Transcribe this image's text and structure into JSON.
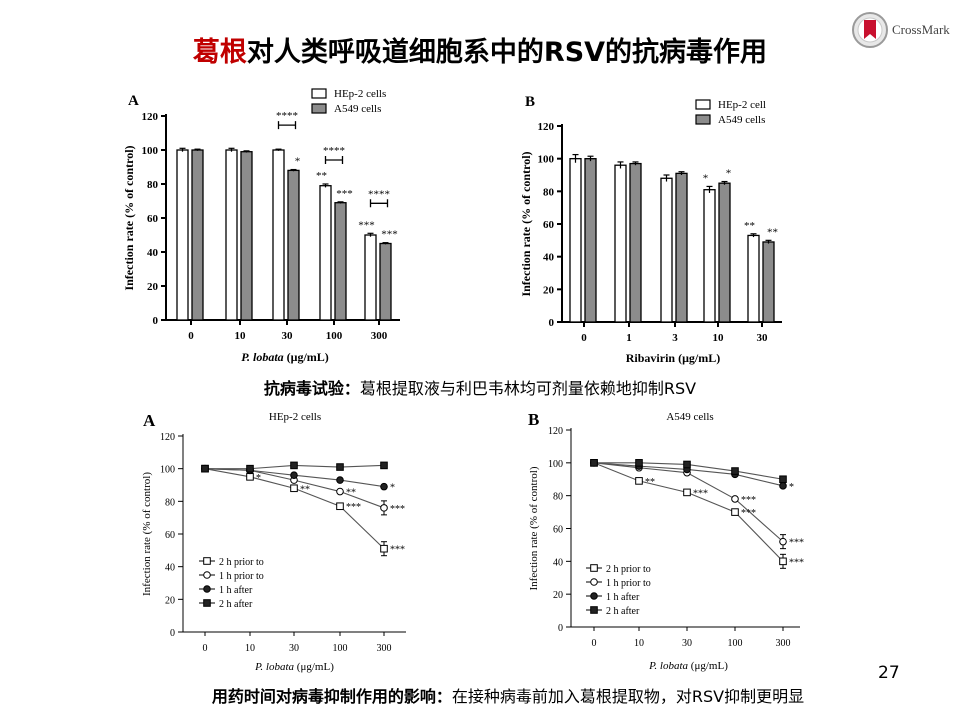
{
  "title": {
    "highlight": "葛根",
    "rest": "对人类呼吸道细胞系中的RSV的抗病毒作用"
  },
  "crossmark": {
    "label": "CrossMark"
  },
  "caption1": {
    "bold": "抗病毒试验：",
    "text": "葛根提取液与利巴韦林均可剂量依赖地抑制RSV"
  },
  "caption2": {
    "bold": "用药时间对病毒抑制作用的影响：",
    "text": "在接种病毒前加入葛根提取物，对RSV抑制更明显"
  },
  "page_number": "27",
  "chart_data": [
    {
      "panel": "A",
      "type": "bar",
      "categories": [
        "0",
        "10",
        "30",
        "100",
        "300"
      ],
      "series": [
        {
          "name": "HEp-2 cells",
          "values": [
            100,
            100,
            100,
            79,
            50
          ],
          "errors": [
            1,
            1,
            0.5,
            1,
            1
          ],
          "stars": [
            "",
            "",
            "",
            "**",
            "***"
          ],
          "color": "#ffffff"
        },
        {
          "name": "A549 cells",
          "values": [
            100,
            99,
            88,
            69,
            45
          ],
          "errors": [
            0.5,
            0.5,
            0.5,
            0.5,
            0.5
          ],
          "stars": [
            "",
            "",
            "*",
            "***",
            "***"
          ],
          "color": "#8c8c8c"
        }
      ],
      "brackets": [
        {
          "category": "30",
          "label": "****"
        },
        {
          "category": "100",
          "label": "****"
        },
        {
          "category": "300",
          "label": "****"
        }
      ],
      "xlabel": "P. lobata (μg/mL)",
      "ylabel": "Infection rate (% of control)",
      "ylim": [
        0,
        120
      ],
      "yticks": [
        0,
        20,
        40,
        60,
        80,
        100,
        120
      ],
      "legend": "top-center"
    },
    {
      "panel": "B",
      "type": "bar",
      "categories": [
        "0",
        "1",
        "3",
        "10",
        "30"
      ],
      "series": [
        {
          "name": "HEp-2 cell",
          "values": [
            100,
            96,
            88,
            81,
            53
          ],
          "errors": [
            2.5,
            2,
            2,
            2,
            1
          ],
          "stars": [
            "",
            "",
            "",
            "*",
            "**"
          ],
          "color": "#ffffff"
        },
        {
          "name": "A549 cells",
          "values": [
            100,
            97,
            91,
            85,
            49
          ],
          "errors": [
            1.5,
            1,
            1,
            1,
            1
          ],
          "stars": [
            "",
            "",
            "",
            "*",
            "**"
          ],
          "color": "#8c8c8c"
        }
      ],
      "xlabel": "Ribavirin (μg/mL)",
      "ylabel": "Infection rate (% of control)",
      "ylim": [
        0,
        120
      ],
      "yticks": [
        0,
        20,
        40,
        60,
        80,
        100,
        120
      ],
      "legend": "top-center"
    },
    {
      "panel": "A",
      "type": "line",
      "title": "HEp-2 cells",
      "categories": [
        "0",
        "10",
        "30",
        "100",
        "300"
      ],
      "series": [
        {
          "name": "2 h prior to",
          "marker": "square-open",
          "values": [
            100,
            95,
            88,
            77,
            51
          ],
          "stars": [
            "",
            "*",
            "**",
            "***",
            "***"
          ]
        },
        {
          "name": "1 h prior to",
          "marker": "circle-open",
          "values": [
            100,
            99,
            93,
            86,
            76
          ],
          "stars": [
            "",
            "",
            "",
            "**",
            "***"
          ]
        },
        {
          "name": "1 h after",
          "marker": "circle-filled",
          "values": [
            100,
            99,
            96,
            93,
            89
          ],
          "stars": [
            "",
            "",
            "",
            "",
            "*"
          ]
        },
        {
          "name": "2 h after",
          "marker": "square-filled",
          "values": [
            100,
            100,
            102,
            101,
            102
          ],
          "stars": [
            "",
            "",
            "",
            "",
            ""
          ]
        }
      ],
      "xlabel": "P. lobata (μg/mL)",
      "ylabel": "Infection rate (% of control)",
      "ylim": [
        0,
        120
      ],
      "yticks": [
        0,
        20,
        40,
        60,
        80,
        100,
        120
      ],
      "legend": "bottom-left"
    },
    {
      "panel": "B",
      "type": "line",
      "title": "A549 cells",
      "categories": [
        "0",
        "10",
        "30",
        "100",
        "300"
      ],
      "series": [
        {
          "name": "2 h prior to",
          "marker": "square-open",
          "values": [
            100,
            89,
            82,
            70,
            40
          ],
          "stars": [
            "",
            "**",
            "***",
            "***",
            "***"
          ]
        },
        {
          "name": "1 h prior to",
          "marker": "circle-open",
          "values": [
            100,
            97,
            94,
            78,
            52
          ],
          "stars": [
            "",
            "",
            "",
            "***",
            "***"
          ]
        },
        {
          "name": "1 h after",
          "marker": "circle-filled",
          "values": [
            100,
            98,
            96,
            93,
            86
          ],
          "stars": [
            "",
            "",
            "",
            "",
            "*"
          ]
        },
        {
          "name": "2 h after",
          "marker": "square-filled",
          "values": [
            100,
            100,
            99,
            95,
            90
          ],
          "stars": [
            "",
            "",
            "",
            "",
            ""
          ]
        }
      ],
      "xlabel": "P. lobata (μg/mL)",
      "ylabel": "Infection rate (% of control)",
      "ylim": [
        0,
        120
      ],
      "yticks": [
        0,
        20,
        40,
        60,
        80,
        100,
        120
      ],
      "legend": "bottom-left"
    }
  ]
}
